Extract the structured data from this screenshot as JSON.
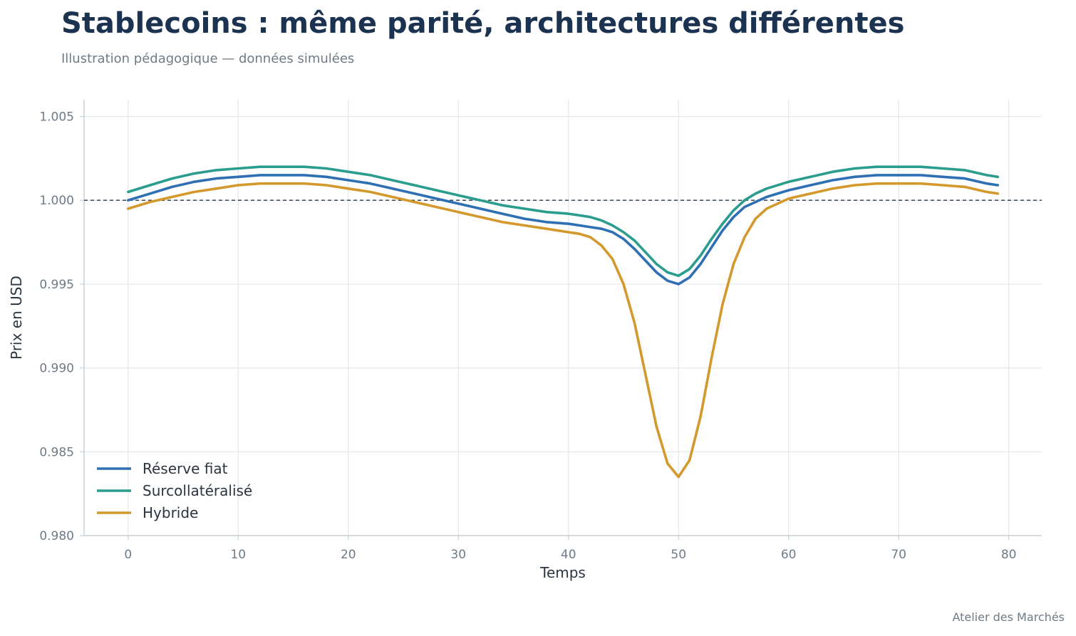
{
  "title": "Stablecoins : même parité, architectures différentes",
  "subtitle": "Illustration pédagogique — données simulées",
  "credit": "Atelier des Marchés",
  "chart_data": {
    "type": "line",
    "xlabel": "Temps",
    "ylabel": "Prix en USD",
    "xlim": [
      -4,
      83
    ],
    "ylim": [
      0.98,
      1.006
    ],
    "x_ticks": [
      0,
      10,
      20,
      30,
      40,
      50,
      60,
      70,
      80
    ],
    "y_ticks": [
      0.98,
      0.985,
      0.99,
      0.995,
      1.0,
      1.005
    ],
    "x_tick_labels": [
      "0",
      "10",
      "20",
      "30",
      "40",
      "50",
      "60",
      "70",
      "80"
    ],
    "y_tick_labels": [
      "0.980",
      "0.985",
      "0.990",
      "0.995",
      "1.000",
      "1.005"
    ],
    "grid": true,
    "legend_position": "bottom-left",
    "reference_line": {
      "y": 1.0,
      "style": "dashed",
      "color": "#2b3540"
    },
    "x": [
      0,
      2,
      4,
      6,
      8,
      10,
      12,
      14,
      16,
      18,
      20,
      22,
      24,
      26,
      28,
      30,
      32,
      34,
      36,
      38,
      40,
      41,
      42,
      43,
      44,
      45,
      46,
      47,
      48,
      49,
      50,
      51,
      52,
      53,
      54,
      55,
      56,
      57,
      58,
      60,
      62,
      64,
      66,
      68,
      70,
      72,
      74,
      76,
      78,
      79
    ],
    "series": [
      {
        "name": "Réserve fiat",
        "color": "#2f6fb3",
        "values": [
          1.0,
          1.0004,
          1.0008,
          1.0011,
          1.0013,
          1.0014,
          1.0015,
          1.0015,
          1.0015,
          1.0014,
          1.0012,
          1.001,
          1.0007,
          1.0004,
          1.0001,
          0.9998,
          0.9995,
          0.9992,
          0.9989,
          0.9987,
          0.9986,
          0.9985,
          0.9984,
          0.9983,
          0.9981,
          0.9977,
          0.9971,
          0.9964,
          0.9957,
          0.9952,
          0.995,
          0.9954,
          0.9962,
          0.9972,
          0.9982,
          0.999,
          0.9996,
          0.9999,
          1.0002,
          1.0006,
          1.0009,
          1.0012,
          1.0014,
          1.0015,
          1.0015,
          1.0015,
          1.0014,
          1.0013,
          1.001,
          1.0009
        ]
      },
      {
        "name": "Surcollatéralisé",
        "color": "#2a9d8f",
        "values": [
          1.0005,
          1.0009,
          1.0013,
          1.0016,
          1.0018,
          1.0019,
          1.002,
          1.002,
          1.002,
          1.0019,
          1.0017,
          1.0015,
          1.0012,
          1.0009,
          1.0006,
          1.0003,
          1.0,
          0.9997,
          0.9995,
          0.9993,
          0.9992,
          0.9991,
          0.999,
          0.9988,
          0.9985,
          0.9981,
          0.9976,
          0.9969,
          0.9962,
          0.9957,
          0.9955,
          0.9959,
          0.9967,
          0.9977,
          0.9986,
          0.9994,
          1.0,
          1.0004,
          1.0007,
          1.0011,
          1.0014,
          1.0017,
          1.0019,
          1.002,
          1.002,
          1.002,
          1.0019,
          1.0018,
          1.0015,
          1.0014
        ]
      },
      {
        "name": "Hybride",
        "color": "#d4992c",
        "values": [
          0.9995,
          0.9999,
          1.0002,
          1.0005,
          1.0007,
          1.0009,
          1.001,
          1.001,
          1.001,
          1.0009,
          1.0007,
          1.0005,
          1.0002,
          0.9999,
          0.9996,
          0.9993,
          0.999,
          0.9987,
          0.9985,
          0.9983,
          0.9981,
          0.998,
          0.9978,
          0.9973,
          0.9965,
          0.995,
          0.9927,
          0.9896,
          0.9865,
          0.9843,
          0.9835,
          0.9845,
          0.9871,
          0.9906,
          0.9938,
          0.9962,
          0.9978,
          0.9989,
          0.9995,
          1.0001,
          1.0004,
          1.0007,
          1.0009,
          1.001,
          1.001,
          1.001,
          1.0009,
          1.0008,
          1.0005,
          1.0004
        ]
      }
    ]
  }
}
